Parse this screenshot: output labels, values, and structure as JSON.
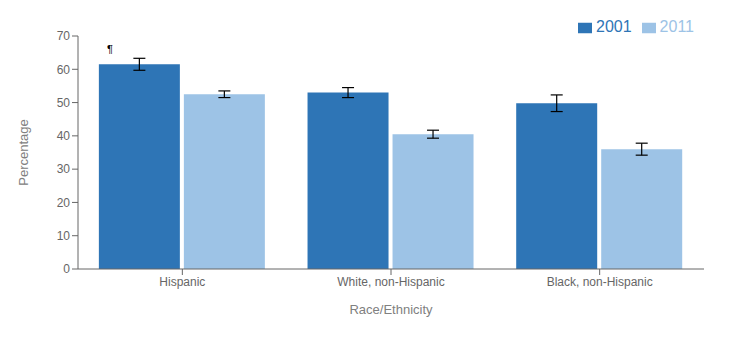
{
  "chart_data": {
    "type": "bar",
    "categories": [
      "Hispanic",
      "White, non-Hispanic",
      "Black, non-Hispanic"
    ],
    "series": [
      {
        "name": "2001",
        "color": "#2E75B6",
        "values": [
          61.5,
          53.0,
          49.8
        ],
        "errors": [
          1.8,
          1.5,
          2.5
        ]
      },
      {
        "name": "2011",
        "color": "#9DC3E6",
        "values": [
          52.5,
          40.5,
          36.0
        ],
        "errors": [
          1.0,
          1.2,
          1.8
        ]
      }
    ],
    "xlabel": "Race/Ethnicity",
    "ylabel": "Percentage",
    "ylim": [
      0,
      70
    ],
    "yticks": [
      0,
      10,
      20,
      30,
      40,
      50,
      60,
      70
    ],
    "annotation": "¶",
    "legend": "upper right",
    "grid": false
  }
}
